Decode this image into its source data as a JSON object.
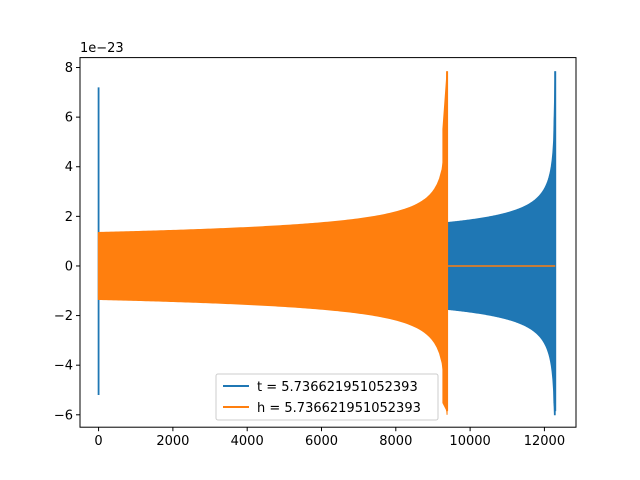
{
  "chart_data": {
    "type": "line",
    "title": "",
    "xlabel": "",
    "ylabel": "",
    "y_offset_label": "1e−23",
    "xlim": [
      -500,
      12850
    ],
    "ylim": [
      -6.5,
      8.4
    ],
    "x_ticks": [
      0,
      2000,
      4000,
      6000,
      8000,
      10000,
      12000
    ],
    "x_tick_labels": [
      "0",
      "2000",
      "4000",
      "6000",
      "8000",
      "10000",
      "12000"
    ],
    "y_ticks": [
      -6,
      -4,
      -2,
      0,
      2,
      4,
      6,
      8
    ],
    "y_tick_labels": [
      "−6",
      "−4",
      "−2",
      "0",
      "2",
      "4",
      "6",
      "8"
    ],
    "grid": false,
    "legend_position": "lower-center",
    "series": [
      {
        "name": "t = 5.736621951052393",
        "color": "#1f77b4",
        "segments": [
          {
            "kind": "spike",
            "x": 0,
            "y_max": 7.2,
            "y_min": -5.2
          },
          {
            "kind": "flat",
            "x_start": 0,
            "x_end": 9380,
            "y": 0
          },
          {
            "kind": "chirp",
            "x_start": 9380,
            "x_end": 12290,
            "amp_start": 1.75,
            "amp_end": 6.0,
            "peak_max": 7.85,
            "peak_min": -5.85
          }
        ]
      },
      {
        "name": "h = 5.736621951052393",
        "color": "#ff7f0e",
        "segments": [
          {
            "kind": "chirp",
            "x_start": 0,
            "x_end": 9380,
            "amp_start": 1.35,
            "amp_end": 6.0,
            "peak_max": 7.85,
            "peak_min": -5.85
          },
          {
            "kind": "flat",
            "x_start": 9380,
            "x_end": 12290,
            "y": 0
          }
        ]
      }
    ]
  }
}
